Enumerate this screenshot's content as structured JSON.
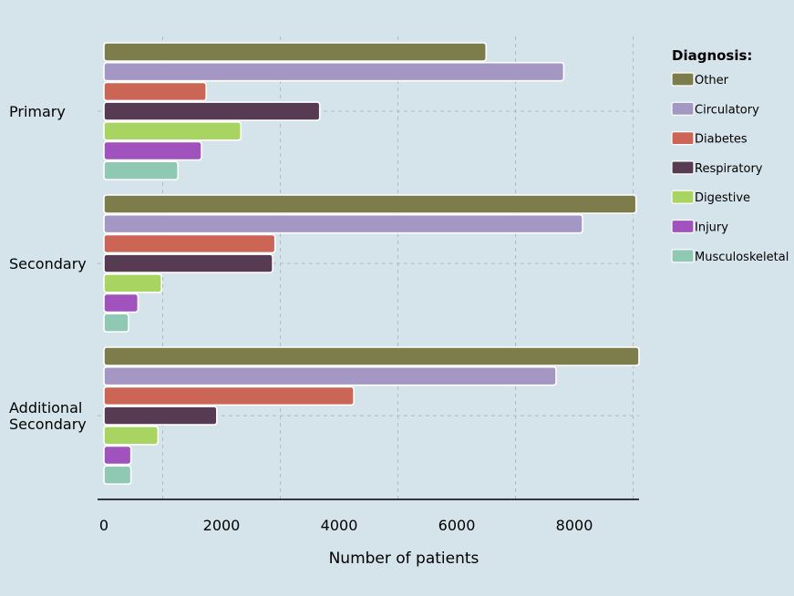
{
  "chart_data": {
    "type": "bar",
    "orientation": "horizontal",
    "categories": [
      "Primary",
      "Secondary",
      "Additional Secondary"
    ],
    "category_lines": [
      [
        "Primary"
      ],
      [
        "Secondary"
      ],
      [
        "Additional",
        "Secondary"
      ]
    ],
    "xlabel": "Number of patients",
    "ylabel": "",
    "xlim": [
      0,
      9100
    ],
    "x_ticks": [
      0,
      2000,
      4000,
      6000,
      8000
    ],
    "grid": true,
    "legend_title": "Diagnosis:",
    "legend_position": "right",
    "series": [
      {
        "name": "Other",
        "color": "#7d7d4c",
        "values": [
          6500,
          9050,
          9100
        ]
      },
      {
        "name": "Circulatory",
        "color": "#a497c4",
        "values": [
          7820,
          8140,
          7690
        ]
      },
      {
        "name": "Diabetes",
        "color": "#cb6556",
        "values": [
          1740,
          2910,
          4250
        ]
      },
      {
        "name": "Respiratory",
        "color": "#563b52",
        "values": [
          3670,
          2870,
          1920
        ]
      },
      {
        "name": "Digestive",
        "color": "#a8d462",
        "values": [
          2330,
          980,
          920
        ]
      },
      {
        "name": "Injury",
        "color": "#a053bd",
        "values": [
          1660,
          580,
          460
        ]
      },
      {
        "name": "Musculoskeletal",
        "color": "#8fc9b4",
        "values": [
          1260,
          420,
          460
        ]
      }
    ]
  }
}
